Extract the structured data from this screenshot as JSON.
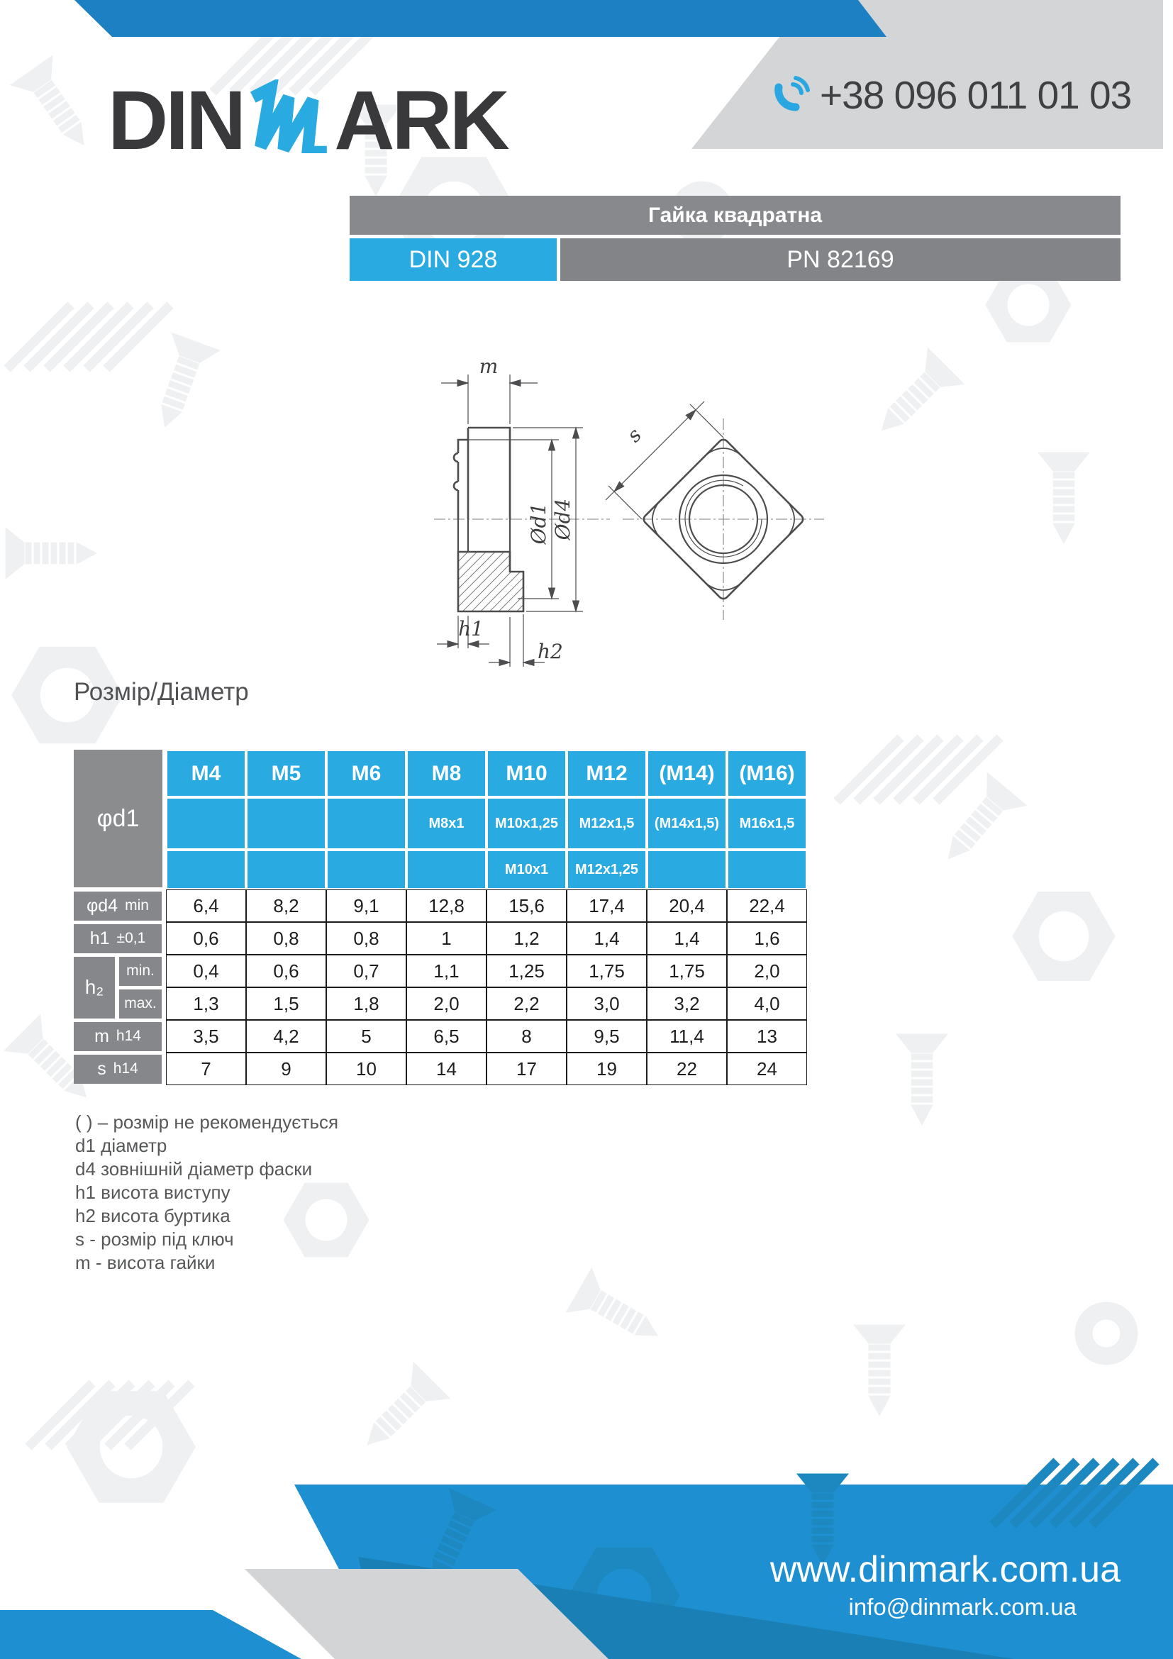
{
  "header": {
    "logo": {
      "part1": "DIN",
      "part2": "ARK"
    },
    "phone": {
      "number": "+38 096 011 01 03"
    }
  },
  "title": {
    "product": "Гайка квадратна",
    "standard": "DIN 928",
    "pn": "PN 82169"
  },
  "drawing": {
    "labels": {
      "m": "m",
      "d1": "Ød1",
      "d4": "Ød4",
      "h1": "h1",
      "h2": "h2",
      "s": "s"
    }
  },
  "section_label": "Розмір/Діаметр",
  "table": {
    "corner": "φd1",
    "h2_label": "h₂",
    "columns": [
      {
        "name": "M4",
        "v2": "",
        "v3": ""
      },
      {
        "name": "M5",
        "v2": "",
        "v3": ""
      },
      {
        "name": "M6",
        "v2": "",
        "v3": ""
      },
      {
        "name": "M8",
        "v2": "M8x1",
        "v3": ""
      },
      {
        "name": "M10",
        "v2": "M10x1,25",
        "v3": "M10x1"
      },
      {
        "name": "M12",
        "v2": "M12x1,5",
        "v3": "M12x1,25"
      },
      {
        "name": "(M14)",
        "v2": "(M14x1,5)",
        "v3": ""
      },
      {
        "name": "(M16)",
        "v2": "M16x1,5",
        "v3": ""
      }
    ],
    "rows": [
      {
        "label": "φd4",
        "sub": "min",
        "values": [
          "6,4",
          "8,2",
          "9,1",
          "12,8",
          "15,6",
          "17,4",
          "20,4",
          "22,4"
        ]
      },
      {
        "label": "h1",
        "sub": "±0,1",
        "values": [
          "0,6",
          "0,8",
          "0,8",
          "1",
          "1,2",
          "1,4",
          "1,4",
          "1,6"
        ]
      },
      {
        "label": "h2",
        "sub": "min.",
        "values": [
          "0,4",
          "0,6",
          "0,7",
          "1,1",
          "1,25",
          "1,75",
          "1,75",
          "2,0"
        ]
      },
      {
        "label": "h2",
        "sub": "max.",
        "values": [
          "1,3",
          "1,5",
          "1,8",
          "2,0",
          "2,2",
          "3,0",
          "3,2",
          "4,0"
        ]
      },
      {
        "label": "m",
        "sub": "h14",
        "values": [
          "3,5",
          "4,2",
          "5",
          "6,5",
          "8",
          "9,5",
          "11,4",
          "13"
        ]
      },
      {
        "label": "s",
        "sub": "h14",
        "values": [
          "7",
          "9",
          "10",
          "14",
          "17",
          "19",
          "22",
          "24"
        ]
      }
    ]
  },
  "legend": {
    "lines": [
      "( ) – розмір не рекомендується",
      "d1 діаметр",
      "d4 зовнішній діаметр фаски",
      "h1 висота виступу",
      "h2 висота буртика",
      "s - розмір під ключ",
      "m - висота гайки"
    ]
  },
  "footer": {
    "website": "www.dinmark.com.ua",
    "email": "info@dinmark.com.ua"
  },
  "colors": {
    "accent_cyan": "#29abe2",
    "band_blue": "#1d80c3",
    "footer_blue": "#1e8fd0",
    "footer_blue_dark": "#1a7fb4",
    "bar_gray": "#87898c",
    "panel_gray": "#d3d5d7",
    "text_dark": "#3f4041"
  }
}
